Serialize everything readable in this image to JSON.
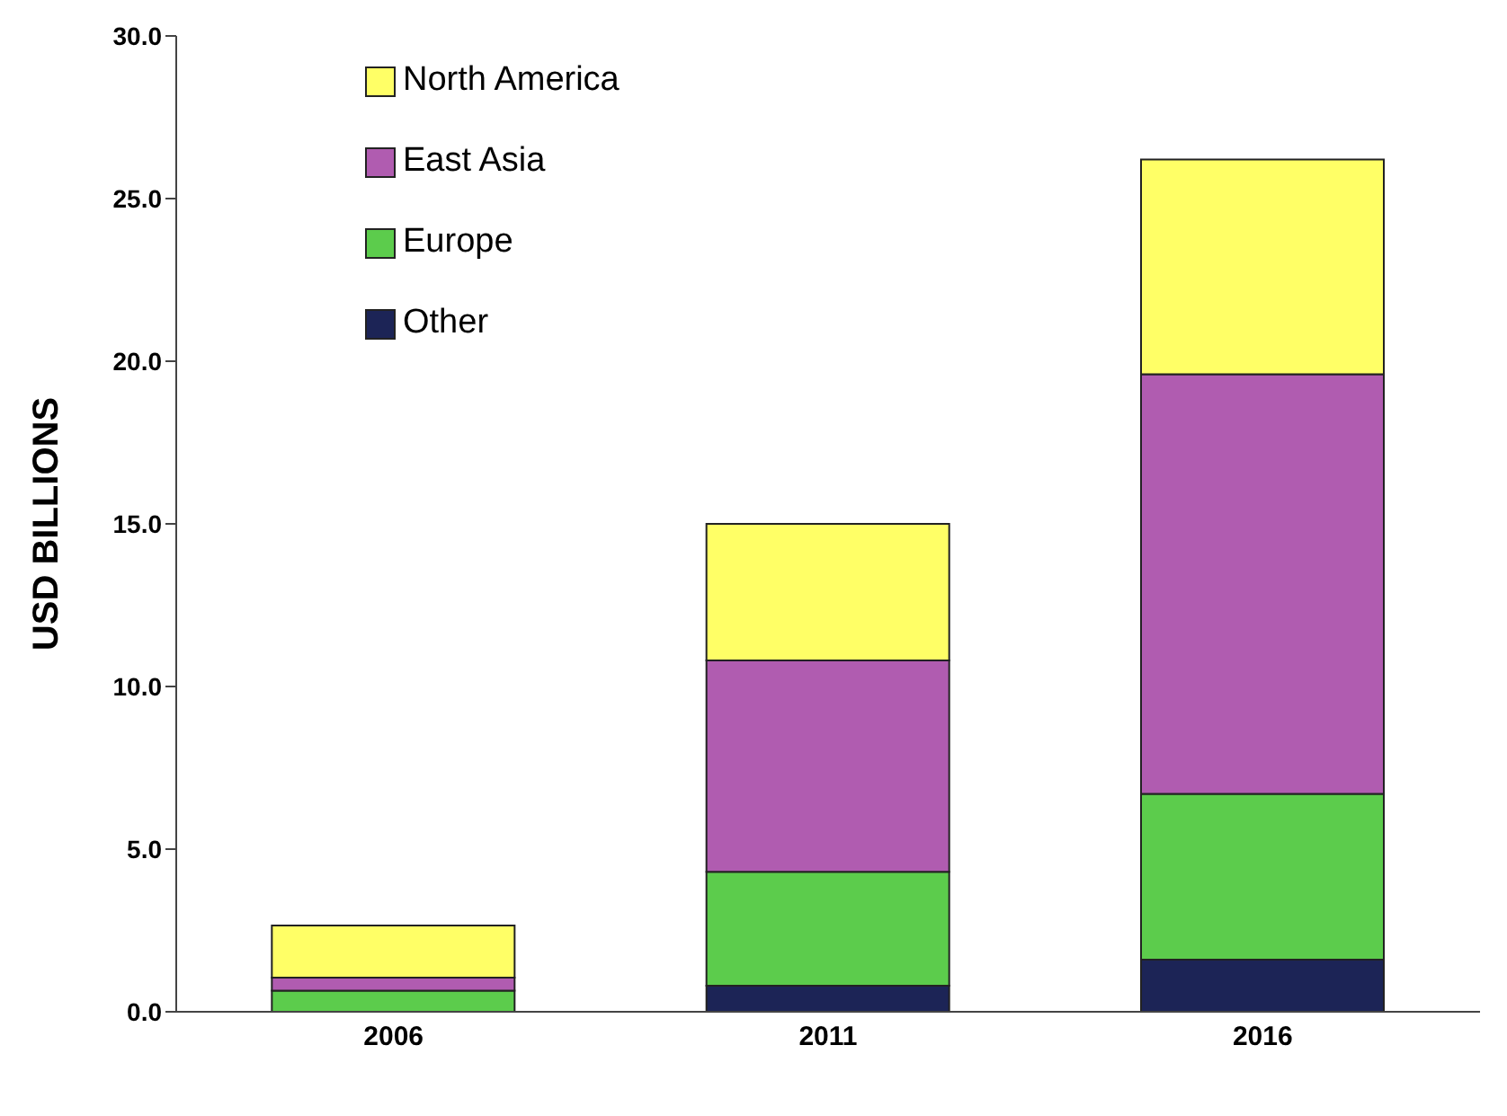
{
  "chart_data": {
    "type": "bar",
    "stacked": true,
    "ylabel": "USD BILLIONS",
    "categories": [
      "2006",
      "2011",
      "2016"
    ],
    "series": [
      {
        "name": "Other",
        "color": "#1c2456",
        "values": [
          null,
          0.8,
          1.6
        ]
      },
      {
        "name": "Europe",
        "color": "#5ccc4c",
        "values": [
          0.65,
          3.5,
          5.1
        ]
      },
      {
        "name": "East Asia",
        "color": "#b05cb0",
        "values": [
          0.4,
          6.5,
          12.9
        ]
      },
      {
        "name": "North America",
        "color": "#ffff66",
        "values": [
          1.6,
          4.2,
          6.6
        ]
      }
    ],
    "ylim": [
      0,
      30
    ],
    "yticks": [
      {
        "value": 0,
        "label": "0.0"
      },
      {
        "value": 5,
        "label": "5.0"
      },
      {
        "value": 10,
        "label": "10.0"
      },
      {
        "value": 15,
        "label": "15.0"
      },
      {
        "value": 20,
        "label": "20.0"
      },
      {
        "value": 25,
        "label": "25.0"
      },
      {
        "value": 30,
        "label": "30.0"
      }
    ],
    "grid": false,
    "legend": "top left"
  }
}
